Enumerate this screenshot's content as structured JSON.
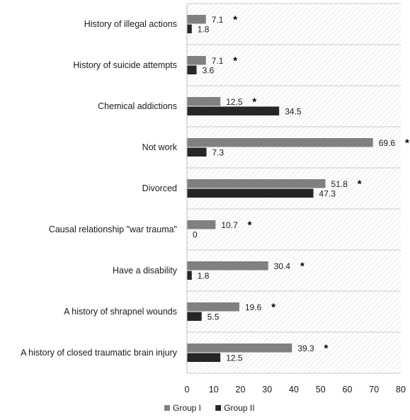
{
  "chart_data": {
    "type": "bar",
    "orientation": "horizontal",
    "title": "",
    "xlabel": "",
    "ylabel": "",
    "xlim": [
      0,
      80
    ],
    "x_ticks": [
      0,
      10,
      20,
      30,
      40,
      50,
      60,
      70,
      80
    ],
    "categories": [
      "History of illegal actions",
      "History of suicide attempts",
      "Chemical addictions",
      "Not work",
      "Divorced",
      "Causal relationship \"war trauma\"",
      "Have a disability",
      "A history of shrapnel wounds",
      "A history of closed traumatic brain injury"
    ],
    "series": [
      {
        "name": "Group I",
        "color": "#808080",
        "values": [
          7.1,
          7.1,
          12.5,
          69.6,
          51.8,
          10.7,
          30.4,
          19.6,
          39.3
        ],
        "labels": [
          "7.1",
          "7.1",
          "12.5",
          "69.6",
          "51.8",
          "10.7",
          "30.4",
          "19.6",
          "39.3"
        ]
      },
      {
        "name": "Group II",
        "color": "#262626",
        "values": [
          1.8,
          3.6,
          34.5,
          7.3,
          47.3,
          0,
          1.8,
          5.5,
          12.5
        ],
        "labels": [
          "1.8",
          "3.6",
          "34.5",
          "7.3",
          "47.3",
          "0",
          "1.8",
          "5.5",
          "12.5"
        ]
      }
    ],
    "significance_marker": "*",
    "legend_position": "bottom",
    "background_pattern": "diagonal-hatch"
  }
}
